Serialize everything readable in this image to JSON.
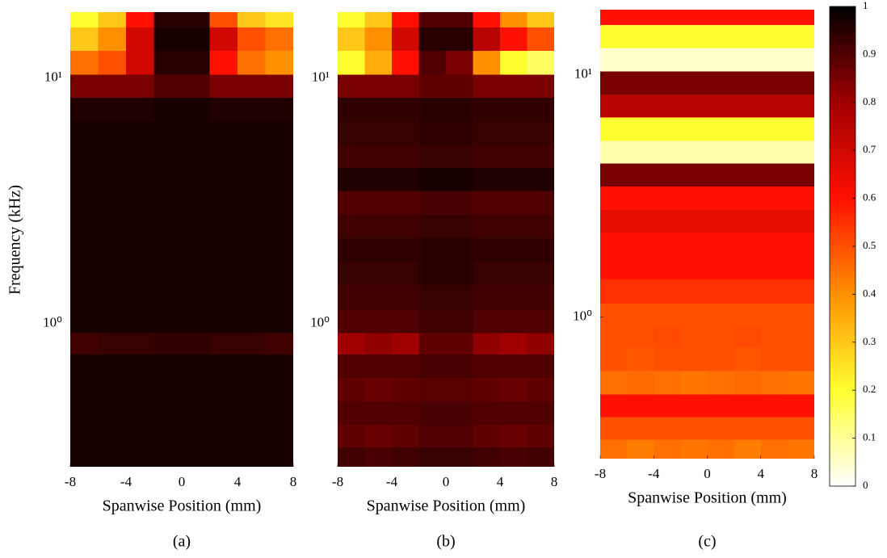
{
  "chart_data": [
    {
      "type": "heatmap",
      "caption": "(a)",
      "xlabel": "Spanwise Position (mm)",
      "ylabel": "Frequency (kHz)",
      "x": [
        -7,
        -5,
        -3,
        -1,
        1,
        3,
        5,
        7
      ],
      "y": [
        0.28,
        0.35,
        0.43,
        0.54,
        0.67,
        0.84,
        1.0,
        1.3,
        1.6,
        2.0,
        2.5,
        3.1,
        3.9,
        4.8,
        6.0,
        7.5,
        9.3,
        11.6,
        14.5,
        18
      ],
      "values": [
        [
          0.97,
          0.97,
          0.97,
          0.97,
          0.97,
          0.97,
          0.97,
          0.97
        ],
        [
          0.97,
          0.97,
          0.97,
          0.97,
          0.97,
          0.97,
          0.97,
          0.97
        ],
        [
          0.97,
          0.97,
          0.97,
          0.97,
          0.97,
          0.97,
          0.97,
          0.97
        ],
        [
          0.97,
          0.97,
          0.97,
          0.97,
          0.97,
          0.97,
          0.97,
          0.97
        ],
        [
          0.97,
          0.97,
          0.97,
          0.97,
          0.97,
          0.97,
          0.97,
          0.97
        ],
        [
          0.92,
          0.93,
          0.93,
          0.94,
          0.94,
          0.93,
          0.93,
          0.92
        ],
        [
          0.97,
          0.97,
          0.97,
          0.97,
          0.97,
          0.97,
          0.97,
          0.97
        ],
        [
          0.97,
          0.97,
          0.97,
          0.97,
          0.97,
          0.97,
          0.97,
          0.97
        ],
        [
          0.97,
          0.97,
          0.97,
          0.97,
          0.97,
          0.97,
          0.97,
          0.97
        ],
        [
          0.97,
          0.97,
          0.97,
          0.97,
          0.97,
          0.97,
          0.97,
          0.97
        ],
        [
          0.97,
          0.97,
          0.97,
          0.97,
          0.97,
          0.97,
          0.97,
          0.97
        ],
        [
          0.97,
          0.97,
          0.97,
          0.97,
          0.97,
          0.97,
          0.97,
          0.97
        ],
        [
          0.97,
          0.97,
          0.97,
          0.97,
          0.97,
          0.97,
          0.97,
          0.97
        ],
        [
          0.97,
          0.97,
          0.97,
          0.97,
          0.97,
          0.97,
          0.97,
          0.97
        ],
        [
          0.97,
          0.97,
          0.97,
          0.97,
          0.97,
          0.97,
          0.97,
          0.97
        ],
        [
          0.96,
          0.96,
          0.96,
          0.97,
          0.97,
          0.96,
          0.96,
          0.96
        ],
        [
          0.85,
          0.85,
          0.85,
          0.9,
          0.9,
          0.85,
          0.85,
          0.85
        ],
        [
          0.45,
          0.5,
          0.7,
          0.95,
          0.95,
          0.6,
          0.45,
          0.4
        ],
        [
          0.3,
          0.4,
          0.7,
          0.97,
          0.97,
          0.7,
          0.5,
          0.45
        ],
        [
          0.2,
          0.3,
          0.6,
          0.95,
          0.95,
          0.5,
          0.3,
          0.25
        ]
      ],
      "xlim": [
        -8,
        8
      ],
      "xticks": [
        -8,
        -4,
        0,
        4,
        8
      ],
      "ylim": [
        0.26,
        18.6
      ],
      "yticks": [
        {
          "value": 1,
          "label": "10⁰"
        },
        {
          "value": 10,
          "label": "10¹"
        }
      ],
      "log_y": true
    },
    {
      "type": "heatmap",
      "caption": "(b)",
      "xlabel": "Spanwise Position (mm)",
      "x": [
        -7,
        -5,
        -3,
        -1,
        1,
        3,
        5,
        7
      ],
      "y": [
        0.28,
        0.35,
        0.43,
        0.54,
        0.67,
        0.84,
        1.0,
        1.3,
        1.6,
        2.0,
        2.5,
        3.1,
        3.9,
        4.8,
        6.0,
        7.5,
        9.3,
        11.6,
        14.5,
        18
      ],
      "values": [
        [
          0.92,
          0.91,
          0.92,
          0.93,
          0.93,
          0.92,
          0.91,
          0.92
        ],
        [
          0.88,
          0.87,
          0.88,
          0.9,
          0.9,
          0.88,
          0.87,
          0.88
        ],
        [
          0.9,
          0.9,
          0.9,
          0.91,
          0.91,
          0.9,
          0.9,
          0.9
        ],
        [
          0.88,
          0.87,
          0.88,
          0.89,
          0.89,
          0.88,
          0.87,
          0.88
        ],
        [
          0.9,
          0.9,
          0.9,
          0.91,
          0.91,
          0.9,
          0.9,
          0.9
        ],
        [
          0.8,
          0.82,
          0.8,
          0.88,
          0.88,
          0.82,
          0.8,
          0.82
        ],
        [
          0.9,
          0.9,
          0.9,
          0.92,
          0.92,
          0.9,
          0.9,
          0.9
        ],
        [
          0.92,
          0.92,
          0.92,
          0.93,
          0.93,
          0.92,
          0.92,
          0.92
        ],
        [
          0.93,
          0.93,
          0.93,
          0.95,
          0.95,
          0.93,
          0.93,
          0.93
        ],
        [
          0.94,
          0.94,
          0.94,
          0.95,
          0.95,
          0.94,
          0.94,
          0.94
        ],
        [
          0.92,
          0.92,
          0.92,
          0.93,
          0.93,
          0.92,
          0.92,
          0.92
        ],
        [
          0.9,
          0.9,
          0.9,
          0.91,
          0.91,
          0.9,
          0.9,
          0.9
        ],
        [
          0.96,
          0.96,
          0.96,
          0.97,
          0.97,
          0.96,
          0.96,
          0.96
        ],
        [
          0.92,
          0.92,
          0.92,
          0.93,
          0.93,
          0.92,
          0.92,
          0.92
        ],
        [
          0.93,
          0.93,
          0.93,
          0.94,
          0.94,
          0.93,
          0.93,
          0.93
        ],
        [
          0.94,
          0.94,
          0.94,
          0.95,
          0.95,
          0.94,
          0.94,
          0.94
        ],
        [
          0.85,
          0.85,
          0.85,
          0.88,
          0.88,
          0.85,
          0.85,
          0.85
        ],
        [
          0.2,
          0.35,
          0.6,
          0.9,
          0.85,
          0.4,
          0.2,
          0.15
        ],
        [
          0.3,
          0.4,
          0.7,
          0.95,
          0.95,
          0.75,
          0.6,
          0.5
        ],
        [
          0.2,
          0.3,
          0.6,
          0.9,
          0.9,
          0.6,
          0.4,
          0.3
        ]
      ],
      "xlim": [
        -8,
        8
      ],
      "xticks": [
        -8,
        -4,
        0,
        4,
        8
      ],
      "ylim": [
        0.26,
        18.6
      ],
      "yticks": [
        {
          "value": 1,
          "label": "10⁰"
        },
        {
          "value": 10,
          "label": "10¹"
        }
      ],
      "log_y": true
    },
    {
      "type": "heatmap",
      "caption": "(c)",
      "xlabel": "Spanwise Position (mm)",
      "x": [
        -7,
        -5,
        -3,
        -1,
        1,
        3,
        5,
        7
      ],
      "y": [
        0.28,
        0.35,
        0.43,
        0.54,
        0.67,
        0.84,
        1.0,
        1.3,
        1.6,
        2.0,
        2.5,
        3.1,
        3.9,
        4.8,
        6.0,
        7.5,
        9.3,
        11.6,
        14.5,
        18
      ],
      "values": [
        [
          0.45,
          0.43,
          0.45,
          0.44,
          0.45,
          0.43,
          0.45,
          0.44
        ],
        [
          0.5,
          0.5,
          0.5,
          0.5,
          0.5,
          0.5,
          0.5,
          0.5
        ],
        [
          0.6,
          0.6,
          0.6,
          0.6,
          0.6,
          0.6,
          0.6,
          0.6
        ],
        [
          0.45,
          0.46,
          0.45,
          0.44,
          0.45,
          0.46,
          0.45,
          0.44
        ],
        [
          0.5,
          0.49,
          0.5,
          0.5,
          0.5,
          0.49,
          0.5,
          0.5
        ],
        [
          0.5,
          0.5,
          0.51,
          0.5,
          0.5,
          0.51,
          0.5,
          0.5
        ],
        [
          0.5,
          0.5,
          0.5,
          0.5,
          0.5,
          0.5,
          0.5,
          0.5
        ],
        [
          0.55,
          0.55,
          0.55,
          0.55,
          0.55,
          0.55,
          0.55,
          0.55
        ],
        [
          0.6,
          0.6,
          0.6,
          0.6,
          0.6,
          0.6,
          0.6,
          0.6
        ],
        [
          0.6,
          0.6,
          0.6,
          0.6,
          0.6,
          0.6,
          0.6,
          0.6
        ],
        [
          0.65,
          0.65,
          0.65,
          0.65,
          0.65,
          0.65,
          0.65,
          0.65
        ],
        [
          0.6,
          0.6,
          0.6,
          0.6,
          0.6,
          0.6,
          0.6,
          0.6
        ],
        [
          0.85,
          0.85,
          0.85,
          0.85,
          0.85,
          0.85,
          0.85,
          0.85
        ],
        [
          0.08,
          0.08,
          0.08,
          0.08,
          0.08,
          0.08,
          0.08,
          0.08
        ],
        [
          0.2,
          0.2,
          0.2,
          0.2,
          0.2,
          0.2,
          0.2,
          0.2
        ],
        [
          0.75,
          0.75,
          0.75,
          0.75,
          0.75,
          0.75,
          0.75,
          0.75
        ],
        [
          0.85,
          0.85,
          0.85,
          0.85,
          0.85,
          0.85,
          0.85,
          0.85
        ],
        [
          0.05,
          0.05,
          0.05,
          0.05,
          0.05,
          0.05,
          0.05,
          0.05
        ],
        [
          0.2,
          0.2,
          0.2,
          0.2,
          0.2,
          0.2,
          0.2,
          0.2
        ],
        [
          0.6,
          0.6,
          0.6,
          0.6,
          0.6,
          0.6,
          0.6,
          0.6
        ]
      ],
      "xlim": [
        -8,
        8
      ],
      "xticks": [
        -8,
        -4,
        0,
        4,
        8
      ],
      "ylim": [
        0.26,
        18.6
      ],
      "yticks": [
        {
          "value": 1,
          "label": "10⁰"
        },
        {
          "value": 10,
          "label": "10¹"
        }
      ],
      "log_y": true
    }
  ],
  "colorbar": {
    "lim": [
      0,
      1
    ],
    "ticks": [
      0,
      0.1,
      0.2,
      0.3,
      0.4,
      0.5,
      0.6,
      0.7,
      0.8,
      0.9,
      1
    ],
    "colors": [
      "#ffffff",
      "#ffff30",
      "#ff9000",
      "#ff1000",
      "#a00000",
      "#000000"
    ]
  }
}
